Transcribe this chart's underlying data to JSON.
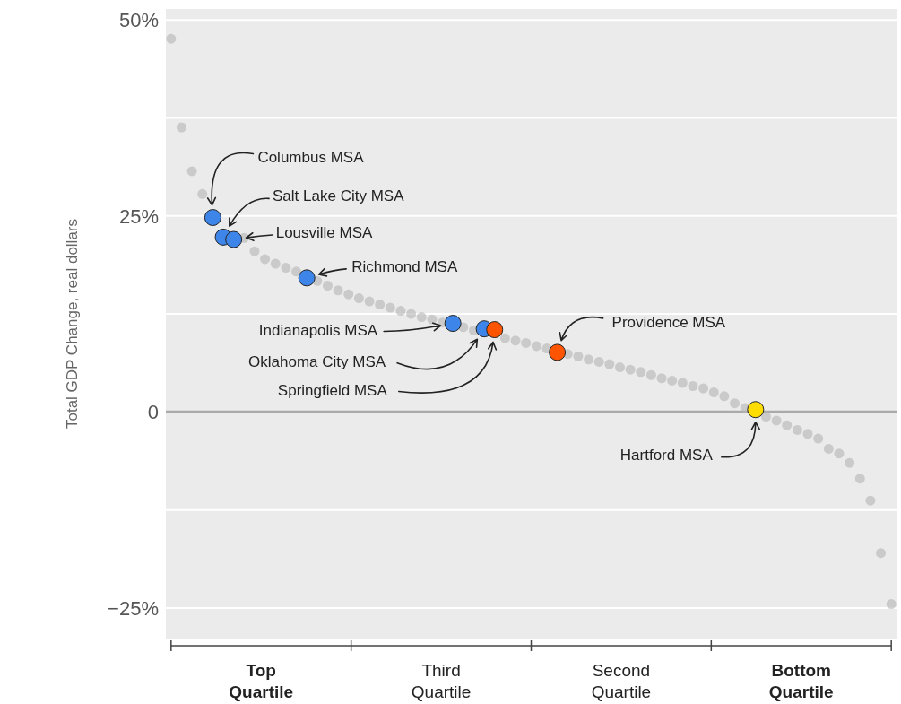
{
  "chart_data": {
    "type": "scatter",
    "ylabel": "Total GDP Change, real dollars",
    "marker": "circle",
    "grid": true,
    "categories": [
      null,
      null,
      null,
      null,
      null,
      null,
      null,
      null,
      null,
      null,
      null,
      null,
      null,
      null,
      null,
      null,
      null,
      null,
      null,
      null,
      null,
      null,
      null,
      null,
      null,
      null,
      null,
      null,
      null,
      null,
      null,
      null,
      null,
      null,
      null,
      null,
      null,
      null,
      null,
      null,
      null,
      null,
      null,
      null,
      null,
      null,
      null,
      null,
      null,
      null,
      null,
      null,
      null,
      null,
      null,
      null,
      null,
      null,
      null,
      null,
      null,
      null,
      null,
      null,
      null,
      null,
      null,
      null,
      null,
      null
    ],
    "ylim": [
      -28.9,
      51.4
    ],
    "yticks": [
      {
        "value": 50,
        "label": "50%"
      },
      {
        "value": 37.5,
        "label": null
      },
      {
        "value": 25,
        "label": "25%"
      },
      {
        "value": 12.5,
        "label": null
      },
      {
        "value": 0,
        "label": "0"
      },
      {
        "value": -12.5,
        "label": null
      },
      {
        "value": -25,
        "label": "−25%"
      }
    ],
    "ref_lines": [
      {
        "axis": "y",
        "value": 0,
        "color": "#aaaaaa"
      }
    ],
    "series": [
      {
        "color": "#b4b4b4",
        "values": [
          47.6,
          36.3,
          30.7,
          27.8,
          null,
          null,
          null,
          22.2,
          20.5,
          19.5,
          18.9,
          18.4,
          17.9,
          null,
          16.7,
          16.1,
          15.5,
          15.0,
          14.5,
          14.1,
          13.7,
          13.3,
          12.9,
          12.5,
          12.1,
          11.8,
          11.4,
          null,
          10.8,
          10.4,
          null,
          null,
          9.4,
          9.1,
          8.8,
          8.4,
          8.1,
          null,
          7.4,
          7.1,
          6.7,
          6.4,
          6.1,
          5.7,
          5.4,
          5.1,
          4.7,
          4.3,
          4.0,
          3.7,
          3.3,
          3.0,
          2.5,
          2.0,
          1.1,
          0.5,
          null,
          -0.6,
          -1.1,
          -1.7,
          -2.3,
          -2.8,
          -3.4,
          -4.7,
          -5.3,
          -6.5,
          -8.5,
          -11.3,
          -18.0,
          -24.5
        ]
      },
      {
        "colors": [
          null,
          null,
          null,
          null,
          "#3d85e8",
          "#3d85e8",
          "#3d85e8",
          null,
          null,
          null,
          null,
          null,
          null,
          "#3d85e8",
          null,
          null,
          null,
          null,
          null,
          null,
          null,
          null,
          null,
          null,
          null,
          null,
          null,
          "#3d85e8",
          null,
          null,
          "#3d85e8",
          "#ff5500",
          null,
          null,
          null,
          null,
          null,
          "#ff5500",
          null,
          null,
          null,
          null,
          null,
          null,
          null,
          null,
          null,
          null,
          null,
          null,
          null,
          null,
          null,
          null,
          null,
          null,
          "#ffdd00",
          null,
          null,
          null,
          null,
          null,
          null,
          null,
          null,
          null,
          null,
          null,
          null,
          null
        ],
        "values": [
          null,
          null,
          null,
          null,
          24.8,
          22.3,
          22.0,
          null,
          null,
          null,
          null,
          null,
          null,
          17.1,
          null,
          null,
          null,
          null,
          null,
          null,
          null,
          null,
          null,
          null,
          null,
          null,
          null,
          11.3,
          null,
          null,
          10.6,
          10.5,
          null,
          null,
          null,
          null,
          null,
          7.6,
          null,
          null,
          null,
          null,
          null,
          null,
          null,
          null,
          null,
          null,
          null,
          null,
          null,
          null,
          null,
          null,
          null,
          null,
          0.3,
          null,
          null,
          null,
          null,
          null,
          null,
          null,
          null,
          null,
          null,
          null,
          null,
          null
        ]
      }
    ],
    "annotations": [
      "Columbus MSA",
      "Salt Lake City MSA",
      "Lousville MSA",
      "Richmond MSA",
      "Indianapolis MSA",
      "Oklahoma City MSA",
      "Springfield MSA",
      "Providence MSA",
      "Hartford MSA",
      "Top Quartile",
      "Third Quartile",
      "Second Quartile",
      "Bottom Quartile"
    ]
  }
}
